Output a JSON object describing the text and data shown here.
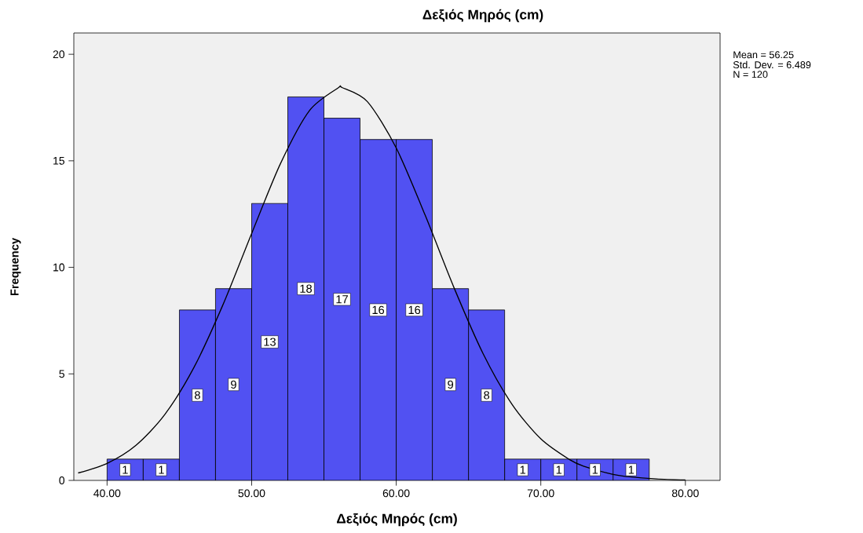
{
  "chart_data": {
    "type": "histogram",
    "title": "Δεξιός Μηρός (cm)",
    "xlabel": "Δεξιός Μηρός (cm)",
    "ylabel": "Frequency",
    "annotations": [
      "Mean = 56.25",
      "Std. Dev. = 6.489",
      "N = 120"
    ],
    "bins": [
      40,
      42.5,
      45,
      47.5,
      50,
      52.5,
      55,
      57.5,
      60,
      62.5,
      65,
      67.5,
      70,
      72.5,
      75,
      77.5
    ],
    "values": [
      1,
      1,
      8,
      9,
      13,
      18,
      17,
      16,
      16,
      9,
      8,
      1,
      1,
      1,
      1
    ],
    "color": "#5151f2",
    "value_labels": [
      "1",
      "1",
      "8",
      "9",
      "13",
      "18",
      "17",
      "16",
      "16",
      "9",
      "8",
      "1",
      "1",
      "1",
      "1"
    ],
    "series": [
      {
        "type": "line",
        "color": "#000000",
        "x": [
          38,
          40,
          42,
          44,
          46,
          48,
          50,
          52,
          54,
          56,
          56.25,
          58,
          60,
          62,
          64,
          66,
          68,
          70,
          72,
          73,
          75,
          76,
          78,
          80
        ],
        "values": [
          0.35,
          0.8,
          1.65,
          3.1,
          5.29,
          8.22,
          11.59,
          14.88,
          17.36,
          18.43,
          18.44,
          17.78,
          15.6,
          12.45,
          9.04,
          5.96,
          3.58,
          1.95,
          0.97,
          0.66,
          0.28,
          0.18,
          0.07,
          0.02
        ]
      }
    ],
    "xlim": [
      37.7,
      82.4
    ],
    "ylim": [
      0,
      21
    ],
    "xticks": [
      {
        "value": 40,
        "label": "40.00"
      },
      {
        "value": 50,
        "label": "50.00"
      },
      {
        "value": 60,
        "label": "60.00"
      },
      {
        "value": 70,
        "label": "70.00"
      },
      {
        "value": 80,
        "label": "80.00"
      }
    ],
    "yticks": [
      0,
      5,
      10,
      15,
      20
    ]
  }
}
